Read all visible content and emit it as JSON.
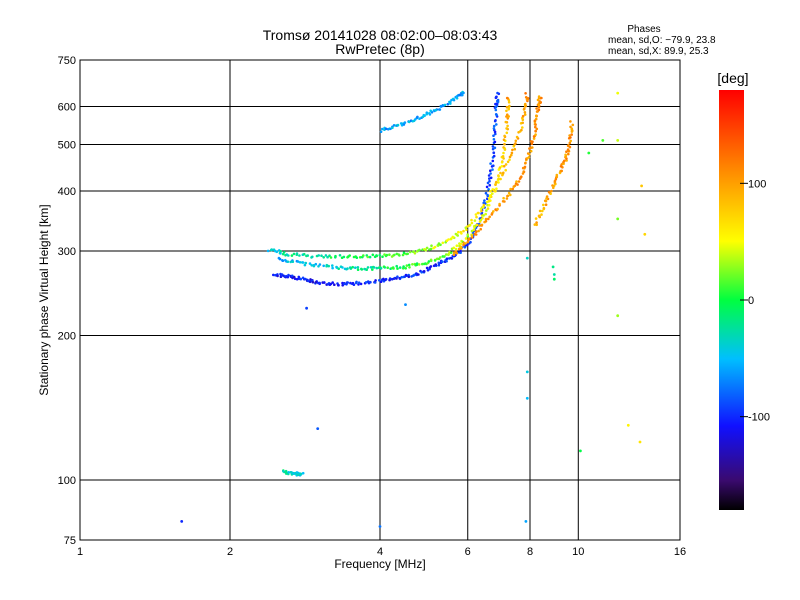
{
  "chart_data": {
    "type": "scatter",
    "title": "Tromsø 20141028 08:02:00–08:03:43",
    "subtitle": "RwPretec (8p)",
    "phases": {
      "label": "Phases",
      "o_line": "mean, sd,O: −79.9, 23.8",
      "x_line": "mean, sd,X:  89.9, 25.3"
    },
    "xlabel": "Frequency [MHz]",
    "ylabel": "Stationary phase Virtual Height [km]",
    "xscale": "log",
    "yscale": "log",
    "xlim": [
      1,
      16
    ],
    "ylim": [
      75,
      750
    ],
    "xticks": [
      1,
      2,
      4,
      6,
      8,
      10,
      16
    ],
    "yticks": [
      75,
      100,
      200,
      300,
      400,
      500,
      600,
      750
    ],
    "grid": true,
    "colorbar": {
      "label": "[deg]",
      "range": [
        -180,
        180
      ],
      "ticks": [
        100,
        0,
        -100
      ]
    },
    "series": [
      {
        "name": "trace-lower",
        "points": [
          [
            2.45,
            268
          ],
          [
            2.6,
            266
          ],
          [
            2.8,
            262
          ],
          [
            3.0,
            258
          ],
          [
            3.3,
            256
          ],
          [
            3.6,
            257
          ],
          [
            4.0,
            260
          ],
          [
            4.4,
            264
          ],
          [
            4.8,
            270
          ],
          [
            5.2,
            280
          ],
          [
            5.6,
            292
          ],
          [
            6.0,
            310
          ],
          [
            6.3,
            340
          ],
          [
            6.55,
            390
          ],
          [
            6.7,
            450
          ],
          [
            6.8,
            520
          ],
          [
            6.85,
            600
          ],
          [
            6.9,
            640
          ]
        ],
        "phase_start": -110,
        "phase_end": -90
      },
      {
        "name": "trace-middle",
        "points": [
          [
            2.5,
            288
          ],
          [
            2.8,
            282
          ],
          [
            3.2,
            278
          ],
          [
            3.6,
            276
          ],
          [
            4.0,
            276
          ],
          [
            4.5,
            278
          ],
          [
            5.0,
            284
          ],
          [
            5.5,
            296
          ],
          [
            6.0,
            320
          ],
          [
            6.5,
            360
          ],
          [
            6.9,
            420
          ],
          [
            7.1,
            480
          ],
          [
            7.2,
            560
          ],
          [
            7.25,
            630
          ]
        ],
        "phase_start": -60,
        "phase_end": 100
      },
      {
        "name": "trace-upper",
        "points": [
          [
            2.4,
            302
          ],
          [
            2.6,
            296
          ],
          [
            3.0,
            292
          ],
          [
            3.5,
            292
          ],
          [
            4.0,
            293
          ],
          [
            4.5,
            296
          ],
          [
            5.0,
            303
          ],
          [
            5.5,
            315
          ],
          [
            6.0,
            336
          ],
          [
            6.5,
            375
          ],
          [
            7.0,
            430
          ],
          [
            7.5,
            500
          ],
          [
            7.8,
            580
          ],
          [
            7.9,
            640
          ]
        ],
        "phase_start": -40,
        "phase_end": 110
      },
      {
        "name": "trace-x",
        "points": [
          [
            5.6,
            295
          ],
          [
            6.1,
            320
          ],
          [
            6.6,
            350
          ],
          [
            7.2,
            390
          ],
          [
            7.7,
            430
          ],
          [
            8.0,
            480
          ],
          [
            8.2,
            540
          ],
          [
            8.3,
            600
          ],
          [
            8.4,
            630
          ]
        ],
        "phase_start": 100,
        "phase_end": 110
      },
      {
        "name": "trace-outer",
        "points": [
          [
            8.2,
            340
          ],
          [
            8.6,
            380
          ],
          [
            9.0,
            420
          ],
          [
            9.4,
            460
          ],
          [
            9.6,
            500
          ],
          [
            9.7,
            560
          ]
        ],
        "phase_start": 90,
        "phase_end": 110
      },
      {
        "name": "trace-f2-high",
        "points": [
          [
            4.0,
            535
          ],
          [
            4.4,
            550
          ],
          [
            4.8,
            570
          ],
          [
            5.2,
            590
          ],
          [
            5.6,
            618
          ],
          [
            5.9,
            645
          ]
        ],
        "phase_start": -60,
        "phase_end": -60
      },
      {
        "name": "trace-low-echo",
        "points": [
          [
            2.55,
            104
          ],
          [
            2.7,
            103
          ],
          [
            2.8,
            103
          ]
        ],
        "phase_start": -30,
        "phase_end": -50
      },
      {
        "name": "scattered",
        "points": [
          [
            1.6,
            82
          ],
          [
            2.85,
            228
          ],
          [
            3.0,
            128
          ],
          [
            4.0,
            80
          ],
          [
            4.5,
            232
          ],
          [
            7.85,
            82
          ],
          [
            7.9,
            148
          ],
          [
            7.9,
            168
          ],
          [
            7.9,
            290
          ],
          [
            8.95,
            268
          ],
          [
            8.9,
            278
          ],
          [
            8.95,
            262
          ],
          [
            10.1,
            115
          ],
          [
            10.5,
            480
          ],
          [
            11.2,
            510
          ],
          [
            12.0,
            350
          ],
          [
            12.0,
            220
          ],
          [
            12.0,
            510
          ],
          [
            12.0,
            640
          ],
          [
            12.6,
            130
          ],
          [
            13.3,
            120
          ],
          [
            13.6,
            325
          ],
          [
            13.4,
            410
          ]
        ],
        "phase_start": -100,
        "phase_end": 80
      }
    ]
  }
}
